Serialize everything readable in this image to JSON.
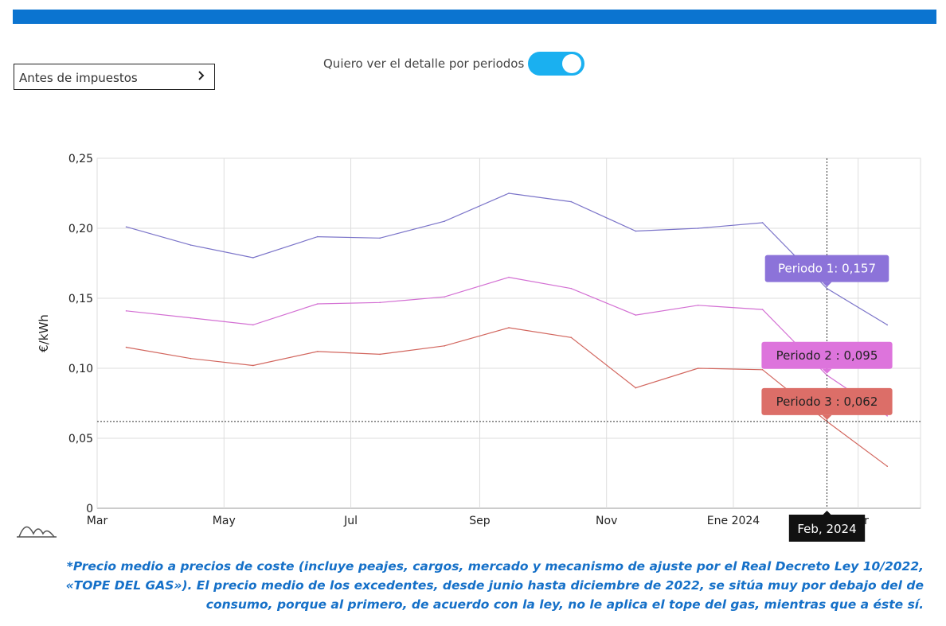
{
  "controls": {
    "select_value": "Antes de impuestos",
    "toggle_label": "Quiero ver el detalle por periodos",
    "toggle_on": true
  },
  "footnote": "*Precio medio a precios de coste (incluye peajes, cargos, mercado y mecanismo de ajuste por el Real Decreto Ley 10/2022, «TOPE DEL GAS»). El precio medio de los excedentes, desde junio hasta diciembre de 2022, se sitúa muy por debajo del de consumo, porque al primero, de acuerdo con la ley, no le aplica el tope del gas, mientras que a éste sí.",
  "icons": {
    "chevron": "chevron-right-icon",
    "watermark": "chart-logo-icon"
  },
  "chart_data": {
    "type": "line",
    "title": "",
    "xlabel": "",
    "ylabel": "€/kWh",
    "ylim": [
      0,
      0.25
    ],
    "yticks": [
      0,
      0.05,
      0.1,
      0.15,
      0.2,
      0.25
    ],
    "ytick_labels": [
      "0",
      "0,05",
      "0,10",
      "0,15",
      "0,20",
      "0,25"
    ],
    "xticks": [
      {
        "label": "Mar",
        "date": "2023-03-01"
      },
      {
        "label": "May",
        "date": "2023-05-01"
      },
      {
        "label": "Jul",
        "date": "2023-07-01"
      },
      {
        "label": "Sep",
        "date": "2023-09-01"
      },
      {
        "label": "Nov",
        "date": "2023-11-01"
      },
      {
        "label": "Ene 2024",
        "date": "2024-01-01"
      },
      {
        "label": "Mar",
        "date": "2024-03-01"
      }
    ],
    "xlim": [
      "2023-03-01",
      "2024-03-31"
    ],
    "x": [
      "2023-03-15",
      "2023-04-15",
      "2023-05-15",
      "2023-06-15",
      "2023-07-15",
      "2023-08-15",
      "2023-09-15",
      "2023-10-15",
      "2023-11-15",
      "2023-12-15",
      "2024-01-15",
      "2024-02-15",
      "2024-03-15"
    ],
    "grid": true,
    "series": [
      {
        "name": "Periodo 1",
        "color": "#7b74c9",
        "values": [
          0.201,
          0.188,
          0.179,
          0.194,
          0.193,
          0.205,
          0.225,
          0.219,
          0.198,
          0.2,
          0.204,
          0.157,
          0.131
        ]
      },
      {
        "name": "Periodo 2",
        "color": "#d36fd3",
        "values": [
          0.141,
          0.136,
          0.131,
          0.146,
          0.147,
          0.151,
          0.165,
          0.157,
          0.138,
          0.145,
          0.142,
          0.095,
          0.066
        ]
      },
      {
        "name": "Periodo 3",
        "color": "#d2665e",
        "values": [
          0.115,
          0.107,
          0.102,
          0.112,
          0.11,
          0.116,
          0.129,
          0.122,
          0.086,
          0.1,
          0.099,
          0.062,
          0.03
        ]
      }
    ],
    "hover": {
      "date_label": "Feb, 2024",
      "index": 11,
      "crosshair_y": 0.062,
      "tooltips": [
        {
          "text": "Periodo 1: 0,157",
          "color": "#8c73d9",
          "text_color": "#ffffff"
        },
        {
          "text": "Periodo 2 : 0,095",
          "color": "#dd74dc",
          "text_color": "#222222"
        },
        {
          "text": "Periodo 3 : 0,062",
          "color": "#dc6e68",
          "text_color": "#222222"
        }
      ]
    }
  }
}
